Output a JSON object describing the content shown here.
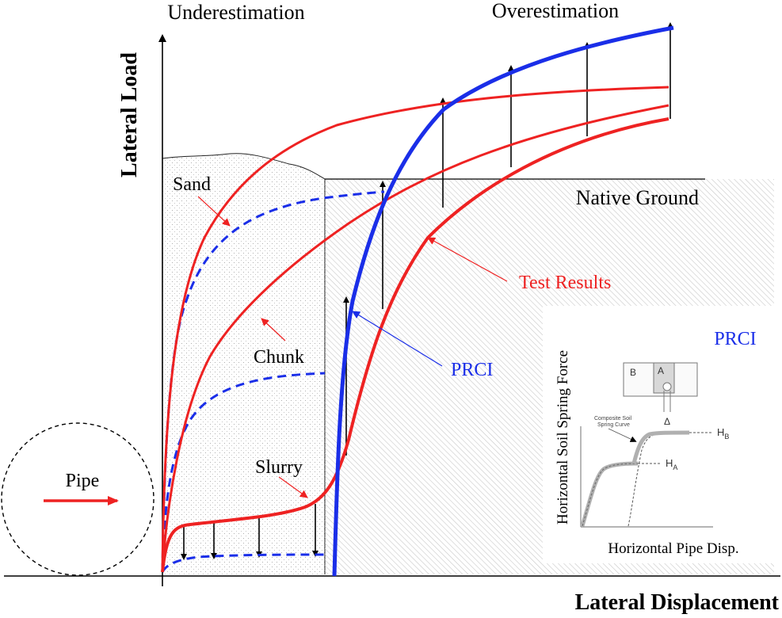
{
  "header": {
    "underestimation": "Underestimation",
    "overestimation": "Overestimation"
  },
  "axes": {
    "ylabel": "Lateral Load",
    "xlabel": "Lateral Displacement"
  },
  "labels": {
    "native_ground": "Native Ground",
    "test_results": "Test Results",
    "sand": "Sand",
    "chunk": "Chunk",
    "slurry": "Slurry",
    "prci": "PRCI",
    "pipe": "Pipe"
  },
  "inset": {
    "title": "PRCI",
    "ylabel": "Horizontal Soil Spring Force",
    "xlabel": "Horizontal Pipe Disp.",
    "box_b": "B",
    "box_a": "A",
    "delta": "Δ",
    "composite_label_1": "Composite Soil",
    "composite_label_2": "Spring Curve",
    "hb_main": "H",
    "hb_sub": "B",
    "ha_main": "H",
    "ha_sub": "A"
  },
  "colors": {
    "test_curve": "#ee2222",
    "prci_curve": "#1a2ee8",
    "axis": "#000000",
    "arrow": "#000000"
  }
}
